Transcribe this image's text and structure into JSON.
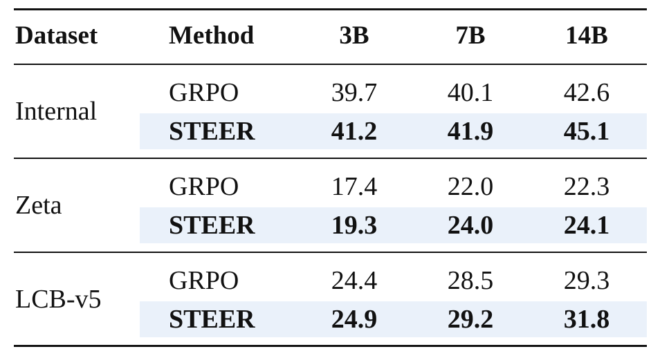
{
  "header": {
    "dataset": "Dataset",
    "method": "Method",
    "cols": [
      "3B",
      "7B",
      "14B"
    ]
  },
  "groups": [
    {
      "dataset": "Internal",
      "rows": [
        {
          "method": "GRPO",
          "values": [
            "39.7",
            "40.1",
            "42.6"
          ],
          "highlight": false
        },
        {
          "method": "STEER",
          "values": [
            "41.2",
            "41.9",
            "45.1"
          ],
          "highlight": true
        }
      ]
    },
    {
      "dataset": "Zeta",
      "rows": [
        {
          "method": "GRPO",
          "values": [
            "17.4",
            "22.0",
            "22.3"
          ],
          "highlight": false
        },
        {
          "method": "STEER",
          "values": [
            "19.3",
            "24.0",
            "24.1"
          ],
          "highlight": true
        }
      ]
    },
    {
      "dataset": "LCB-v5",
      "rows": [
        {
          "method": "GRPO",
          "values": [
            "24.4",
            "28.5",
            "29.3"
          ],
          "highlight": false
        },
        {
          "method": "STEER",
          "values": [
            "24.9",
            "29.2",
            "31.8"
          ],
          "highlight": true
        }
      ]
    }
  ],
  "colors": {
    "highlight_band": "#eaf1fa",
    "text": "#111111"
  }
}
